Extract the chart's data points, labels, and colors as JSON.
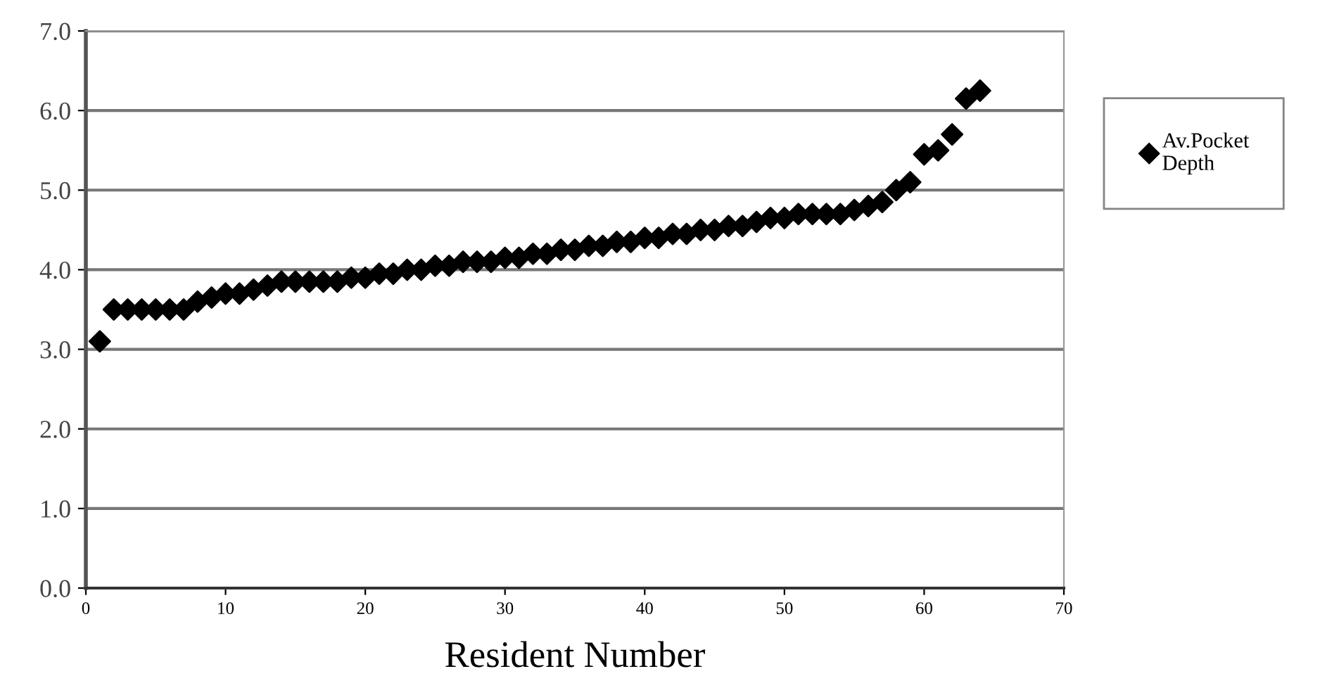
{
  "chart_data": {
    "type": "scatter",
    "xlabel": "Resident Number",
    "x": [
      1,
      2,
      3,
      4,
      5,
      6,
      7,
      8,
      9,
      10,
      11,
      12,
      13,
      14,
      15,
      16,
      17,
      18,
      19,
      20,
      21,
      22,
      23,
      24,
      25,
      26,
      27,
      28,
      29,
      30,
      31,
      32,
      33,
      34,
      35,
      36,
      37,
      38,
      39,
      40,
      41,
      42,
      43,
      44,
      45,
      46,
      47,
      48,
      49,
      50,
      51,
      52,
      53,
      54,
      55,
      56,
      57,
      58,
      59,
      60,
      61,
      62,
      63,
      64
    ],
    "series": [
      {
        "name": "Av.Pocket Depth",
        "color": "#000000",
        "values": [
          3.1,
          3.5,
          3.5,
          3.5,
          3.5,
          3.5,
          3.5,
          3.6,
          3.65,
          3.7,
          3.7,
          3.75,
          3.8,
          3.85,
          3.85,
          3.85,
          3.85,
          3.85,
          3.9,
          3.9,
          3.95,
          3.95,
          4.0,
          4.0,
          4.05,
          4.05,
          4.1,
          4.1,
          4.1,
          4.15,
          4.15,
          4.2,
          4.2,
          4.25,
          4.25,
          4.3,
          4.3,
          4.35,
          4.35,
          4.4,
          4.4,
          4.45,
          4.45,
          4.5,
          4.5,
          4.55,
          4.55,
          4.6,
          4.65,
          4.65,
          4.7,
          4.7,
          4.7,
          4.7,
          4.75,
          4.8,
          4.85,
          5.0,
          5.1,
          5.45,
          5.5,
          5.7,
          6.15,
          6.25
        ]
      }
    ],
    "xlim": [
      0,
      70
    ],
    "xticks": [
      0,
      10,
      20,
      30,
      40,
      50,
      60,
      70
    ],
    "ylim": [
      0,
      7
    ],
    "yticks": [
      {
        "value": 0,
        "label": "0.0"
      },
      {
        "value": 1,
        "label": "1.0"
      },
      {
        "value": 2,
        "label": "2.0"
      },
      {
        "value": 3,
        "label": "3.0"
      },
      {
        "value": 4,
        "label": "4.0"
      },
      {
        "value": 5,
        "label": "5.0"
      },
      {
        "value": 6,
        "label": "6.0"
      },
      {
        "value": 7,
        "label": "7.0"
      }
    ],
    "grid": "y",
    "legend": "right",
    "marker": "diamond"
  }
}
